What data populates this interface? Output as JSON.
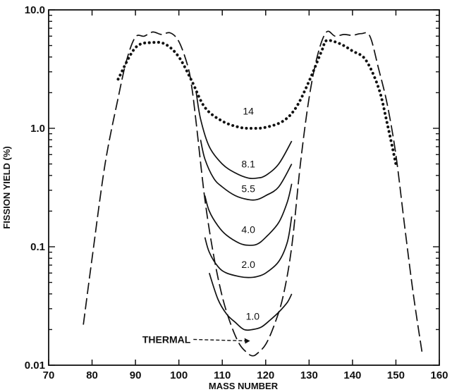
{
  "chart_data": {
    "type": "line",
    "title": "",
    "xlabel": "MASS NUMBER",
    "ylabel": "FISSION YIELD (%)",
    "xlim": [
      70,
      160
    ],
    "ylim": [
      0.01,
      10.0
    ],
    "yscale": "log",
    "x_ticks": [
      "70",
      "80",
      "90",
      "100",
      "110",
      "120",
      "130",
      "140",
      "150",
      "160"
    ],
    "y_ticks": [
      "0.01",
      "0.1",
      "1.0",
      "10.0"
    ],
    "colors": {
      "ink": "#111111"
    },
    "series": [
      {
        "name": "14",
        "style": "dotted",
        "label_at": [
          116,
          1.4
        ],
        "x": [
          86,
          90,
          94,
          97,
          100,
          103,
          106,
          110,
          114,
          117,
          120,
          124,
          127,
          130,
          133,
          134,
          137,
          140,
          143,
          146,
          148,
          150
        ],
        "y": [
          2.6,
          4.8,
          5.3,
          5.1,
          4.0,
          2.5,
          1.5,
          1.15,
          1.02,
          1.0,
          1.02,
          1.15,
          1.5,
          2.5,
          4.6,
          5.5,
          5.2,
          4.5,
          3.8,
          2.2,
          1.1,
          0.5
        ]
      },
      {
        "name": "8.1",
        "style": "solid",
        "label_at": [
          116,
          0.5
        ],
        "x": [
          104,
          105,
          107,
          110,
          113,
          116,
          118,
          120,
          123,
          126
        ],
        "y": [
          2.0,
          1.2,
          0.7,
          0.5,
          0.42,
          0.38,
          0.38,
          0.4,
          0.5,
          0.78
        ]
      },
      {
        "name": "5.5",
        "style": "solid",
        "label_at": [
          116,
          0.31
        ],
        "x": [
          105,
          106,
          108,
          110,
          113,
          116,
          118,
          120,
          123,
          126
        ],
        "y": [
          0.8,
          0.55,
          0.38,
          0.32,
          0.27,
          0.25,
          0.25,
          0.27,
          0.32,
          0.5
        ]
      },
      {
        "name": "4.0",
        "style": "solid",
        "label_at": [
          116,
          0.14
        ],
        "x": [
          106,
          107,
          109,
          111,
          114,
          116,
          118,
          120,
          123,
          125,
          126
        ],
        "y": [
          0.27,
          0.2,
          0.15,
          0.125,
          0.107,
          0.103,
          0.105,
          0.12,
          0.16,
          0.24,
          0.34
        ]
      },
      {
        "name": "2.0",
        "style": "solid",
        "label_at": [
          116,
          0.071
        ],
        "x": [
          106,
          107,
          109,
          111,
          114,
          116,
          118,
          120,
          123,
          125,
          126
        ],
        "y": [
          0.12,
          0.09,
          0.068,
          0.06,
          0.056,
          0.055,
          0.056,
          0.06,
          0.075,
          0.11,
          0.18
        ]
      },
      {
        "name": "1.0",
        "style": "solid",
        "label_at": [
          117,
          0.026
        ],
        "x": [
          107,
          109,
          111,
          113,
          115,
          117,
          119,
          121,
          123,
          125,
          126
        ],
        "y": [
          0.06,
          0.036,
          0.027,
          0.023,
          0.02,
          0.02,
          0.021,
          0.024,
          0.028,
          0.034,
          0.04
        ]
      },
      {
        "name": "THERMAL",
        "style": "dashed",
        "label_at": [
          104,
          0.0165
        ],
        "x": [
          78,
          80,
          83,
          86,
          88,
          90,
          92,
          94,
          96,
          98,
          100,
          102,
          103,
          104,
          106,
          108,
          110,
          112,
          114,
          116,
          117,
          118,
          120,
          122,
          124,
          126,
          128,
          130,
          132,
          134,
          136,
          138,
          140,
          142,
          144,
          146,
          148,
          150,
          152,
          154,
          156
        ],
        "y": [
          0.022,
          0.08,
          0.5,
          1.8,
          3.8,
          5.9,
          6.0,
          6.5,
          6.2,
          6.4,
          5.4,
          3.4,
          2.2,
          1.1,
          0.25,
          0.085,
          0.038,
          0.022,
          0.015,
          0.0125,
          0.012,
          0.0125,
          0.015,
          0.022,
          0.038,
          0.1,
          0.5,
          1.8,
          4.2,
          6.5,
          6.0,
          6.2,
          6.1,
          6.3,
          6.0,
          3.2,
          1.6,
          0.6,
          0.15,
          0.04,
          0.013
        ]
      }
    ]
  }
}
